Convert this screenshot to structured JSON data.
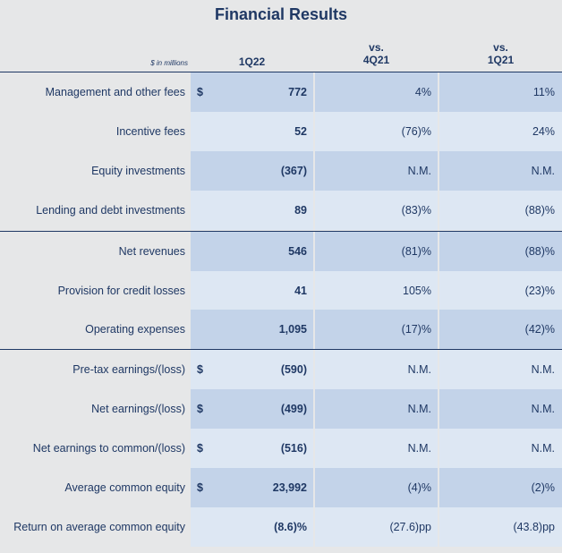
{
  "title": "Financial Results",
  "header": {
    "unit": "$ in millions",
    "col1": "1Q22",
    "col2_line1": "vs.",
    "col2_line2": "4Q21",
    "col3_line1": "vs.",
    "col3_line2": "1Q21"
  },
  "rows": [
    {
      "label": "Management and other fees",
      "dollar": "$",
      "v1": "772",
      "v2": "4%",
      "v3": "11%"
    },
    {
      "label": "Incentive fees",
      "dollar": "",
      "v1": "52",
      "v2": "(76)%",
      "v3": "24%"
    },
    {
      "label": "Equity investments",
      "dollar": "",
      "v1": "(367)",
      "v2": "N.M.",
      "v3": "N.M."
    },
    {
      "label": "Lending and debt investments",
      "dollar": "",
      "v1": "89",
      "v2": "(83)%",
      "v3": "(88)%"
    },
    {
      "label": "Net revenues",
      "dollar": "",
      "v1": "546",
      "v2": "(81)%",
      "v3": "(88)%"
    },
    {
      "label": "Provision for credit losses",
      "dollar": "",
      "v1": "41",
      "v2": "105%",
      "v3": "(23)%"
    },
    {
      "label": "Operating expenses",
      "dollar": "",
      "v1": "1,095",
      "v2": "(17)%",
      "v3": "(42)%"
    },
    {
      "label": "Pre-tax earnings/(loss)",
      "dollar": "$",
      "v1": "(590)",
      "v2": "N.M.",
      "v3": "N.M."
    },
    {
      "label": "Net earnings/(loss)",
      "dollar": "$",
      "v1": "(499)",
      "v2": "N.M.",
      "v3": "N.M."
    },
    {
      "label": "Net earnings to common/(loss)",
      "dollar": "$",
      "v1": "(516)",
      "v2": "N.M.",
      "v3": "N.M."
    },
    {
      "label": "Average common equity",
      "dollar": "$",
      "v1": "23,992",
      "v2": "(4)%",
      "v3": "(2)%"
    },
    {
      "label": "Return on average common equity",
      "dollar": "",
      "v1": "(8.6)%",
      "v2": "(27.6)pp",
      "v3": "(43.8)pp"
    }
  ],
  "colors": {
    "navy": "#1f3864",
    "cell_dark": "#c3d3e9",
    "cell_light": "#dde7f3",
    "background": "#e6e7e8"
  }
}
